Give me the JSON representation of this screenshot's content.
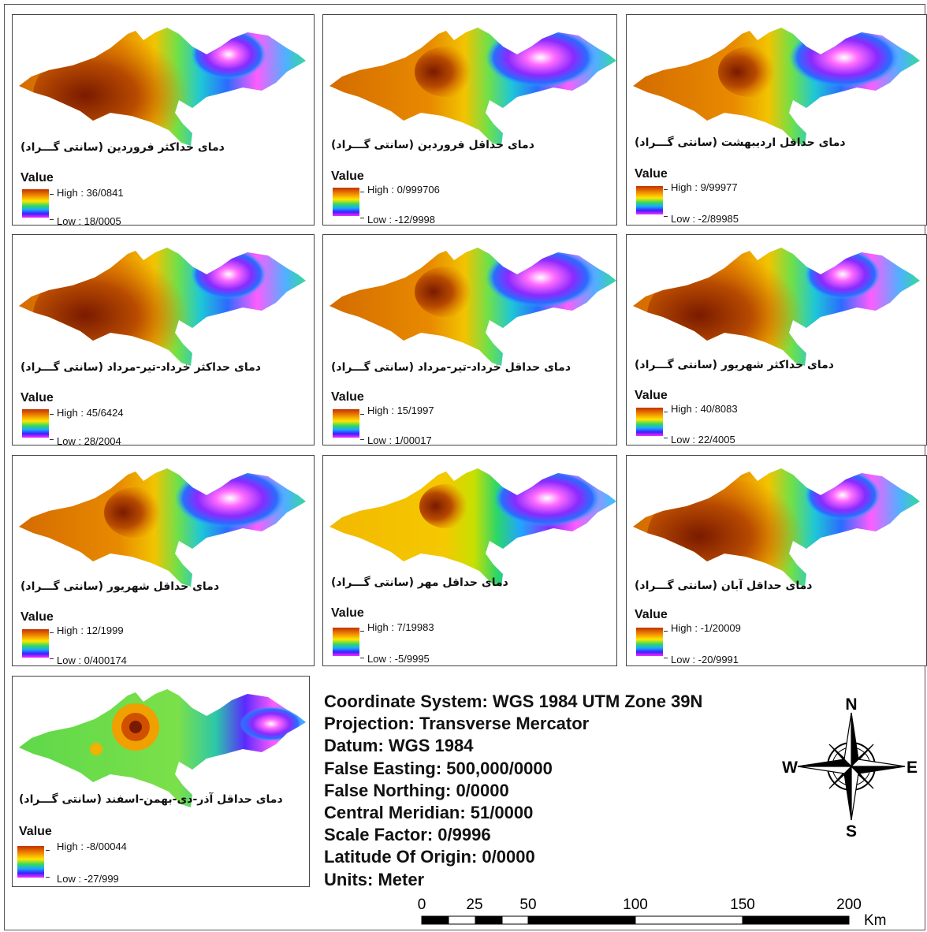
{
  "panels": [
    {
      "title": "دمای حداکثر فروردین (سانتی گـــراد)",
      "legend_title": "Value",
      "high": "High : 36/0841",
      "low": "Low : 18/0005"
    },
    {
      "title": "دمای حداقل فروردین (سانتی گـــراد)",
      "legend_title": "Value",
      "high": "High : 0/999706",
      "low": "Low : -12/9998"
    },
    {
      "title": "دمای حداقل اردیبهشت (سانتی گـــراد)",
      "legend_title": "Value",
      "high": "High : 9/99977",
      "low": "Low : -2/89985"
    },
    {
      "title": "دمای حداکثر خرداد-تیر-مرداد (سانتی گـــراد)",
      "legend_title": "Value",
      "high": "High : 45/6424",
      "low": "Low : 28/2004"
    },
    {
      "title": "دمای حداقل خرداد-تیر-مرداد (سانتی گـــراد)",
      "legend_title": "Value",
      "high": "High : 15/1997",
      "low": "Low : 1/00017"
    },
    {
      "title": "دمای حداکثر شهریور (سانتی گـــراد)",
      "legend_title": "Value",
      "high": "High : 40/8083",
      "low": "Low : 22/4005"
    },
    {
      "title": "دمای حداقل شهریور (سانتی گـــراد)",
      "legend_title": "Value",
      "high": "High : 12/1999",
      "low": "Low : 0/400174"
    },
    {
      "title": "دمای حداقل مهر (سانتی گـــراد)",
      "legend_title": "Value",
      "high": "High : 7/19983",
      "low": "Low : -5/9995"
    },
    {
      "title": "دمای حداقل آبان (سانتی گـــراد)",
      "legend_title": "Value",
      "high": "High : -1/20009",
      "low": "Low : -20/9991"
    },
    {
      "title": "دمای حداقل آذر-دی-بهمن-اسفند (سانتی گـــراد)",
      "legend_title": "Value",
      "high": "High : -8/00044",
      "low": "Low : -27/999"
    }
  ],
  "map_info": {
    "coordinate_system": "Coordinate System: WGS 1984 UTM Zone 39N",
    "projection": "Projection: Transverse Mercator",
    "datum": "Datum: WGS 1984",
    "false_easting": "False Easting: 500,000/0000",
    "false_northing": "False Northing: 0/0000",
    "central_meridian": "Central Meridian: 51/0000",
    "scale_factor": "Scale Factor: 0/9996",
    "latitude_of_origin": "Latitude Of Origin: 0/0000",
    "units": "Units: Meter"
  },
  "compass": {
    "n": "N",
    "s": "S",
    "e": "E",
    "w": "W"
  },
  "scale_bar": {
    "ticks": [
      "0",
      "25",
      "50",
      "100",
      "150",
      "200"
    ],
    "unit": "Km"
  },
  "colors": {
    "ramp_high": "#c23000",
    "ramp_low": "#ff2bff",
    "hot_core": "#8a1e00"
  }
}
